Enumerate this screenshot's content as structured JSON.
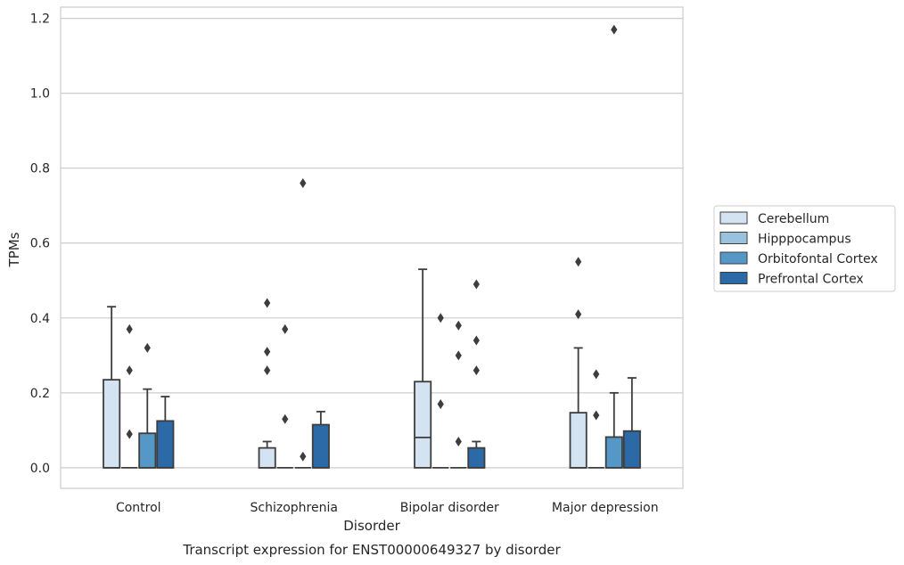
{
  "chart_data": {
    "type": "box",
    "title": "",
    "caption": "Transcript expression for ENST00000649327 by disorder",
    "xlabel": "Disorder",
    "ylabel": "TPMs",
    "ylim": [
      -0.055,
      1.23
    ],
    "yticks": [
      0.0,
      0.2,
      0.4,
      0.6,
      0.8,
      1.0,
      1.2
    ],
    "ytick_labels": [
      "0.0",
      "0.2",
      "0.4",
      "0.6",
      "0.8",
      "1.0",
      "1.2"
    ],
    "grid": "horizontal",
    "legend_position": "right",
    "categories": [
      "Control",
      "Schizophrenia",
      "Bipolar disorder",
      "Major depression"
    ],
    "series": [
      {
        "name": "Cerebellum",
        "color": "#d4e3f2",
        "boxes": [
          {
            "q1": 0.0,
            "median": 0.0,
            "q3": 0.235,
            "whisker_low": 0.0,
            "whisker_high": 0.43,
            "outliers": []
          },
          {
            "q1": 0.0,
            "median": 0.0,
            "q3": 0.053,
            "whisker_low": 0.0,
            "whisker_high": 0.07,
            "outliers": [
              0.26,
              0.31,
              0.44
            ]
          },
          {
            "q1": 0.0,
            "median": 0.081,
            "q3": 0.23,
            "whisker_low": 0.0,
            "whisker_high": 0.53,
            "outliers": []
          },
          {
            "q1": 0.0,
            "median": 0.0,
            "q3": 0.147,
            "whisker_low": 0.0,
            "whisker_high": 0.32,
            "outliers": [
              0.41,
              0.55
            ]
          }
        ]
      },
      {
        "name": "Hipppocampus",
        "color": "#9ac2dc",
        "boxes": [
          {
            "q1": 0.0,
            "median": 0.0,
            "q3": 0.0,
            "whisker_low": 0.0,
            "whisker_high": 0.0,
            "outliers": [
              0.09,
              0.26,
              0.37
            ]
          },
          {
            "q1": 0.0,
            "median": 0.0,
            "q3": 0.0,
            "whisker_low": 0.0,
            "whisker_high": 0.0,
            "outliers": [
              0.13,
              0.37
            ]
          },
          {
            "q1": 0.0,
            "median": 0.0,
            "q3": 0.0,
            "whisker_low": 0.0,
            "whisker_high": 0.0,
            "outliers": [
              0.17,
              0.4
            ]
          },
          {
            "q1": 0.0,
            "median": 0.0,
            "q3": 0.0,
            "whisker_low": 0.0,
            "whisker_high": 0.0,
            "outliers": [
              0.14,
              0.25
            ]
          }
        ]
      },
      {
        "name": "Orbitofontal Cortex",
        "color": "#5597c7",
        "boxes": [
          {
            "q1": 0.0,
            "median": 0.0,
            "q3": 0.092,
            "whisker_low": 0.0,
            "whisker_high": 0.21,
            "outliers": [
              0.32
            ]
          },
          {
            "q1": 0.0,
            "median": 0.0,
            "q3": 0.0,
            "whisker_low": 0.0,
            "whisker_high": 0.0,
            "outliers": [
              0.03,
              0.76
            ]
          },
          {
            "q1": 0.0,
            "median": 0.0,
            "q3": 0.0,
            "whisker_low": 0.0,
            "whisker_high": 0.0,
            "outliers": [
              0.07,
              0.3,
              0.38
            ]
          },
          {
            "q1": 0.0,
            "median": 0.0,
            "q3": 0.082,
            "whisker_low": 0.0,
            "whisker_high": 0.2,
            "outliers": [
              1.17
            ]
          }
        ]
      },
      {
        "name": "Prefrontal Cortex",
        "color": "#2b6aa6",
        "boxes": [
          {
            "q1": 0.0,
            "median": 0.0,
            "q3": 0.125,
            "whisker_low": 0.0,
            "whisker_high": 0.19,
            "outliers": []
          },
          {
            "q1": 0.0,
            "median": 0.0,
            "q3": 0.115,
            "whisker_low": 0.0,
            "whisker_high": 0.15,
            "outliers": []
          },
          {
            "q1": 0.0,
            "median": 0.0,
            "q3": 0.053,
            "whisker_low": 0.0,
            "whisker_high": 0.07,
            "outliers": [
              0.26,
              0.34,
              0.49
            ]
          },
          {
            "q1": 0.0,
            "median": 0.0,
            "q3": 0.098,
            "whisker_low": 0.0,
            "whisker_high": 0.24,
            "outliers": []
          }
        ]
      }
    ]
  }
}
